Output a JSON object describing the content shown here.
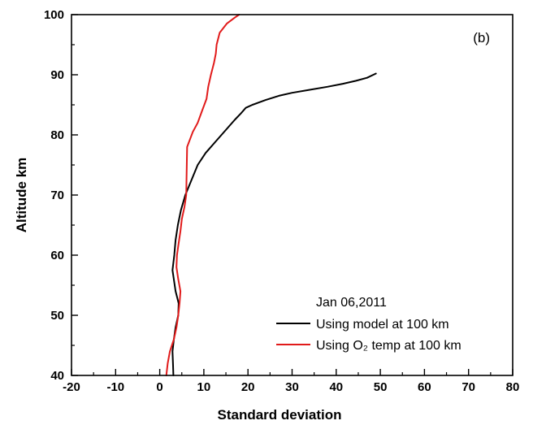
{
  "chart_data": {
    "type": "line",
    "panel_label": "(b)",
    "xlabel": "Standard deviation",
    "ylabel": "Altitude km",
    "xlim": [
      -20,
      80
    ],
    "ylim": [
      40,
      100
    ],
    "xticks": [
      -20,
      -10,
      0,
      10,
      20,
      30,
      40,
      50,
      60,
      70,
      80
    ],
    "yticks": [
      40,
      50,
      60,
      70,
      80,
      90,
      100
    ],
    "grid": false,
    "legend": {
      "placement": "bottom-right",
      "title": "Jan 06,2011"
    },
    "series": [
      {
        "name": "Using model at 100 km",
        "color": "#000000",
        "x": [
          3.1,
          3.0,
          2.9,
          3.2,
          3.6,
          4.2,
          4.3,
          3.6,
          2.9,
          3.3,
          3.6,
          4.1,
          4.8,
          5.8,
          7.2,
          8.6,
          10.4,
          12.8,
          15.2,
          17.0,
          18.3,
          19.5,
          21.0,
          24.0,
          27.0,
          30.0,
          34.0,
          38.0,
          41.5,
          44.5,
          47.0,
          49.0
        ],
        "y": [
          40.0,
          42.0,
          44.0,
          46.0,
          48.0,
          50.0,
          52.0,
          54.0,
          57.5,
          60.0,
          62.5,
          65.0,
          67.5,
          70.0,
          72.5,
          75.0,
          77.0,
          79.0,
          81.0,
          82.5,
          83.5,
          84.5,
          85.0,
          85.8,
          86.5,
          87.0,
          87.5,
          88.0,
          88.5,
          89.0,
          89.5,
          90.2
        ]
      },
      {
        "name": "Using O₂ temp at 100 km",
        "color": "#e11a1a",
        "x": [
          1.5,
          1.8,
          2.3,
          3.2,
          3.8,
          4.2,
          4.5,
          4.7,
          4.2,
          3.8,
          3.9,
          4.3,
          4.7,
          5.0,
          5.6,
          6.0,
          6.2,
          7.5,
          8.6,
          9.6,
          10.6,
          11.0,
          11.6,
          12.3,
          12.7,
          12.9,
          13.6,
          15.2,
          17.0,
          18.0
        ],
        "y": [
          40.0,
          42.0,
          44.0,
          46.0,
          48.0,
          50.0,
          52.0,
          54.0,
          56.0,
          58.0,
          60.0,
          62.0,
          64.0,
          66.0,
          68.0,
          70.0,
          78.0,
          80.5,
          82.0,
          84.0,
          86.0,
          88.0,
          90.0,
          92.0,
          93.5,
          95.0,
          97.0,
          98.5,
          99.5,
          100.0
        ]
      }
    ]
  }
}
